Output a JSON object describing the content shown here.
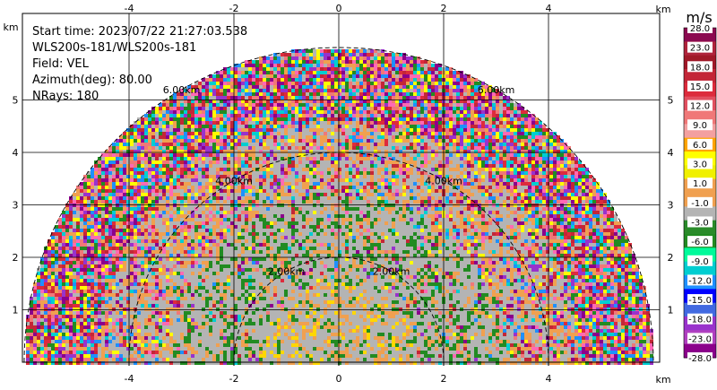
{
  "chart_data": {
    "type": "heatmap",
    "subtype": "radar-ppi-sector",
    "info_lines": [
      "Start time: 2023/07/22 21:27:03.538",
      "WLS200s-181/WLS200s-181",
      "Field: VEL",
      "Azimuth(deg): 80.00",
      "NRays: 180"
    ],
    "x_axis": {
      "unit_label": "km",
      "range": [
        -6,
        6
      ],
      "ticks": [
        -4,
        -2,
        0,
        2,
        4
      ],
      "tick_labels": [
        "-4",
        "-2",
        "0",
        "2",
        "4"
      ]
    },
    "y_axis": {
      "unit_label": "km",
      "range": [
        0,
        5.9
      ],
      "ticks": [
        1,
        2,
        3,
        4,
        5
      ],
      "tick_labels": [
        "1",
        "2",
        "3",
        "4",
        "5"
      ]
    },
    "range_rings": [
      {
        "radius_km": 2,
        "label": "2.00km"
      },
      {
        "radius_km": 4,
        "label": "4.00km"
      },
      {
        "radius_km": 6,
        "label": "6.00km"
      }
    ],
    "grid": true,
    "colorbar": {
      "unit": "m/s",
      "colors": [
        "#8b0a50",
        "#b0243c",
        "#a01928",
        "#c32637",
        "#dd2b3c",
        "#e25060",
        "#f07878",
        "#f3a0a0",
        "#ffa500",
        "#ffff00",
        "#f0f000",
        "#f0a050",
        "#f0a050",
        "#b4b4b4",
        "#2a8b2a",
        "#228b22",
        "#00fa9a",
        "#00ced1",
        "#1e90ff",
        "#0000ff",
        "#4169e1",
        "#9932cc",
        "#b040c0",
        "#8b008b"
      ],
      "labels": [
        "28.0",
        "23.0",
        "18.0",
        "15.0",
        "12.0",
        "9.0",
        "6.0",
        "3.0",
        "1.0",
        "-1.0",
        "-3.0",
        "-6.0",
        "-9.0",
        "-12.0",
        "-15.0",
        "-18.0",
        "-23.0",
        "-28.0"
      ]
    },
    "field_description": {
      "near_range_km": 2,
      "near_colors": [
        "#b4b4b4",
        "#f0a050",
        "#228b22",
        "#ffd700"
      ],
      "far_colors": [
        "#c32637",
        "#8b008b",
        "#f0a050",
        "#228b22",
        "#1e90ff",
        "#ffff00",
        "#00ced1",
        "#dd2b3c",
        "#b4b4b4",
        "#9932cc",
        "#ff69b4",
        "#f07878"
      ]
    }
  }
}
